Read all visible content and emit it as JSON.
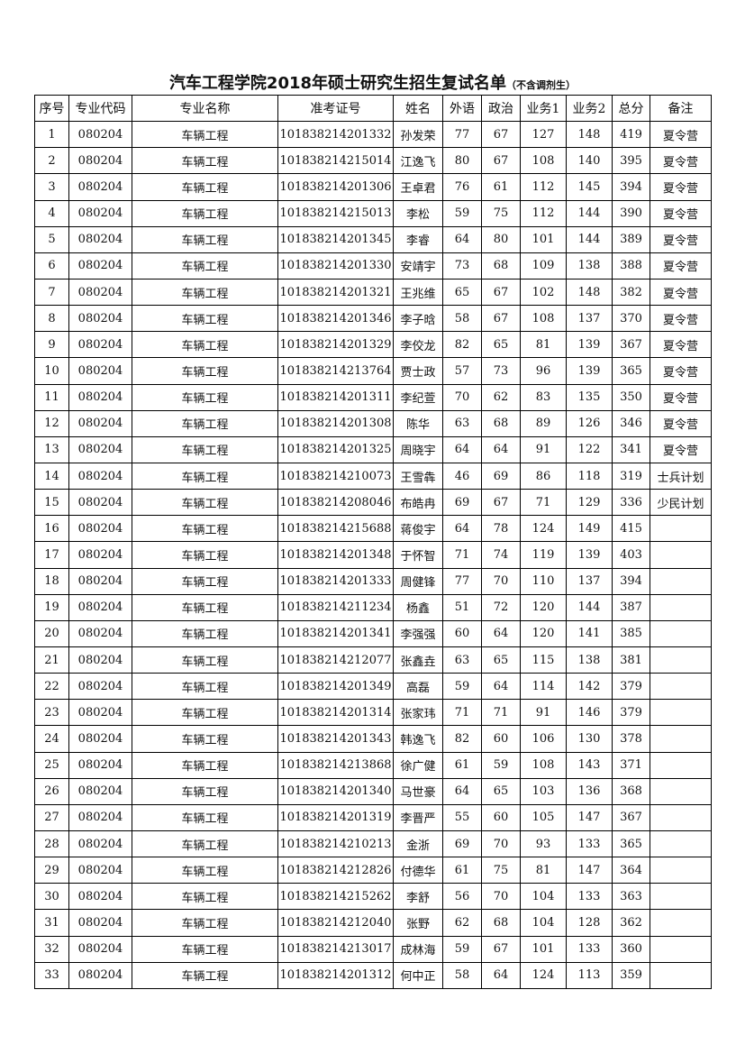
{
  "title": "汽车工程学院2018年硕士研究生招生复试名单",
  "subtitle": "（不含调剂生）",
  "columns": [
    "序号",
    "专业代码",
    "专业名称",
    "准考证号",
    "姓名",
    "外语",
    "政治",
    "业务1",
    "业务2",
    "总分",
    "备注"
  ],
  "rows": [
    [
      "1",
      "080204",
      "车辆工程",
      "101838214201332",
      "孙发荣",
      "77",
      "67",
      "127",
      "148",
      "419",
      "夏令营"
    ],
    [
      "2",
      "080204",
      "车辆工程",
      "101838214215014",
      "江逸飞",
      "80",
      "67",
      "108",
      "140",
      "395",
      "夏令营"
    ],
    [
      "3",
      "080204",
      "车辆工程",
      "101838214201306",
      "王卓君",
      "76",
      "61",
      "112",
      "145",
      "394",
      "夏令营"
    ],
    [
      "4",
      "080204",
      "车辆工程",
      "101838214215013",
      "李松",
      "59",
      "75",
      "112",
      "144",
      "390",
      "夏令营"
    ],
    [
      "5",
      "080204",
      "车辆工程",
      "101838214201345",
      "李睿",
      "64",
      "80",
      "101",
      "144",
      "389",
      "夏令营"
    ],
    [
      "6",
      "080204",
      "车辆工程",
      "101838214201330",
      "安靖宇",
      "73",
      "68",
      "109",
      "138",
      "388",
      "夏令营"
    ],
    [
      "7",
      "080204",
      "车辆工程",
      "101838214201321",
      "王兆维",
      "65",
      "67",
      "102",
      "148",
      "382",
      "夏令营"
    ],
    [
      "8",
      "080204",
      "车辆工程",
      "101838214201346",
      "李子晗",
      "58",
      "67",
      "108",
      "137",
      "370",
      "夏令营"
    ],
    [
      "9",
      "080204",
      "车辆工程",
      "101838214201329",
      "李佼龙",
      "82",
      "65",
      "81",
      "139",
      "367",
      "夏令营"
    ],
    [
      "10",
      "080204",
      "车辆工程",
      "101838214213764",
      "贾士政",
      "57",
      "73",
      "96",
      "139",
      "365",
      "夏令营"
    ],
    [
      "11",
      "080204",
      "车辆工程",
      "101838214201311",
      "李纪萱",
      "70",
      "62",
      "83",
      "135",
      "350",
      "夏令营"
    ],
    [
      "12",
      "080204",
      "车辆工程",
      "101838214201308",
      "陈华",
      "63",
      "68",
      "89",
      "126",
      "346",
      "夏令营"
    ],
    [
      "13",
      "080204",
      "车辆工程",
      "101838214201325",
      "周晓宇",
      "64",
      "64",
      "91",
      "122",
      "341",
      "夏令营"
    ],
    [
      "14",
      "080204",
      "车辆工程",
      "101838214210073",
      "王雪犇",
      "46",
      "69",
      "86",
      "118",
      "319",
      "士兵计划"
    ],
    [
      "15",
      "080204",
      "车辆工程",
      "101838214208046",
      "布皓冉",
      "69",
      "67",
      "71",
      "129",
      "336",
      "少民计划"
    ],
    [
      "16",
      "080204",
      "车辆工程",
      "101838214215688",
      "蒋俊宇",
      "64",
      "78",
      "124",
      "149",
      "415",
      ""
    ],
    [
      "17",
      "080204",
      "车辆工程",
      "101838214201348",
      "于怀智",
      "71",
      "74",
      "119",
      "139",
      "403",
      ""
    ],
    [
      "18",
      "080204",
      "车辆工程",
      "101838214201333",
      "周健锋",
      "77",
      "70",
      "110",
      "137",
      "394",
      ""
    ],
    [
      "19",
      "080204",
      "车辆工程",
      "101838214211234",
      "杨鑫",
      "51",
      "72",
      "120",
      "144",
      "387",
      ""
    ],
    [
      "20",
      "080204",
      "车辆工程",
      "101838214201341",
      "李强强",
      "60",
      "64",
      "120",
      "141",
      "385",
      ""
    ],
    [
      "21",
      "080204",
      "车辆工程",
      "101838214212077",
      "张鑫垚",
      "63",
      "65",
      "115",
      "138",
      "381",
      ""
    ],
    [
      "22",
      "080204",
      "车辆工程",
      "101838214201349",
      "高磊",
      "59",
      "64",
      "114",
      "142",
      "379",
      ""
    ],
    [
      "23",
      "080204",
      "车辆工程",
      "101838214201314",
      "张家玮",
      "71",
      "71",
      "91",
      "146",
      "379",
      ""
    ],
    [
      "24",
      "080204",
      "车辆工程",
      "101838214201343",
      "韩逸飞",
      "82",
      "60",
      "106",
      "130",
      "378",
      ""
    ],
    [
      "25",
      "080204",
      "车辆工程",
      "101838214213868",
      "徐广健",
      "61",
      "59",
      "108",
      "143",
      "371",
      ""
    ],
    [
      "26",
      "080204",
      "车辆工程",
      "101838214201340",
      "马世豪",
      "64",
      "65",
      "103",
      "136",
      "368",
      ""
    ],
    [
      "27",
      "080204",
      "车辆工程",
      "101838214201319",
      "李晋严",
      "55",
      "60",
      "105",
      "147",
      "367",
      ""
    ],
    [
      "28",
      "080204",
      "车辆工程",
      "101838214210213",
      "金浙",
      "69",
      "70",
      "93",
      "133",
      "365",
      ""
    ],
    [
      "29",
      "080204",
      "车辆工程",
      "101838214212826",
      "付德华",
      "61",
      "75",
      "81",
      "147",
      "364",
      ""
    ],
    [
      "30",
      "080204",
      "车辆工程",
      "101838214215262",
      "李舒",
      "56",
      "70",
      "104",
      "133",
      "363",
      ""
    ],
    [
      "31",
      "080204",
      "车辆工程",
      "101838214212040",
      "张野",
      "62",
      "68",
      "104",
      "128",
      "362",
      ""
    ],
    [
      "32",
      "080204",
      "车辆工程",
      "101838214213017",
      "成林海",
      "59",
      "67",
      "101",
      "133",
      "360",
      ""
    ],
    [
      "33",
      "080204",
      "车辆工程",
      "101838214201312",
      "何中正",
      "58",
      "64",
      "124",
      "113",
      "359",
      ""
    ]
  ]
}
